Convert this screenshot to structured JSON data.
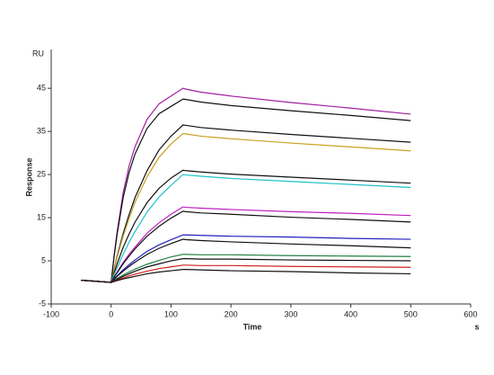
{
  "chart_data": {
    "type": "line",
    "y_unit": "RU",
    "ylabel": "Response",
    "xlabel": "Time",
    "x_unit": "s",
    "x": [
      -50,
      0,
      5,
      10,
      20,
      30,
      40,
      60,
      80,
      100,
      120,
      125,
      150,
      200,
      300,
      400,
      500
    ],
    "xlim": [
      -100,
      600
    ],
    "xticks": [
      -100,
      0,
      100,
      200,
      300,
      400,
      500,
      600
    ],
    "ylim": [
      -5,
      54
    ],
    "yticks": [
      -5,
      5,
      15,
      25,
      35,
      45
    ],
    "series": [
      {
        "color": "#a020a0",
        "values": [
          0.5,
          0,
          6.3,
          11.7,
          20.7,
          27,
          31.5,
          37.8,
          41.4,
          43.2,
          45,
          44.8,
          44.1,
          43.2,
          41.7,
          40.4,
          39
        ]
      },
      {
        "color": "#111111",
        "values": [
          0.5,
          0,
          6.0,
          11.1,
          19.6,
          25.5,
          29.8,
          35.7,
          39.1,
          40.8,
          42.5,
          42.4,
          41.8,
          41,
          39.8,
          38.7,
          37.5
        ]
      },
      {
        "color": "#111111",
        "values": [
          0.5,
          0,
          3.1,
          6.1,
          11.3,
          15.7,
          19.7,
          25.9,
          30.7,
          33.9,
          36.5,
          36.4,
          35.9,
          35.3,
          34.3,
          33.4,
          32.5
        ]
      },
      {
        "color": "#c8a020",
        "values": [
          0.5,
          0,
          3.0,
          5.8,
          10.7,
          14.8,
          18.6,
          24.5,
          29,
          32.1,
          34.5,
          34.4,
          33.9,
          33.3,
          32.3,
          31.4,
          30.5
        ]
      },
      {
        "color": "#111111",
        "values": [
          0.5,
          0,
          2.2,
          4.3,
          8.1,
          11.2,
          14,
          18.5,
          21.8,
          24.2,
          26,
          25.9,
          25.6,
          25.1,
          24.4,
          23.7,
          23
        ]
      },
      {
        "color": "#20c0c8",
        "values": [
          0.5,
          0,
          1.8,
          3.4,
          6.5,
          9.3,
          11.8,
          16.3,
          19.8,
          22.5,
          25,
          24.9,
          24.6,
          24.1,
          23.4,
          22.7,
          22
        ]
      },
      {
        "color": "#c020c0",
        "values": [
          0.5,
          0,
          1.2,
          2.4,
          4.6,
          6.5,
          8.2,
          11.4,
          13.8,
          15.8,
          17.5,
          17.4,
          17.2,
          16.9,
          16.4,
          16,
          15.5
        ]
      },
      {
        "color": "#111111",
        "values": [
          0.5,
          0,
          1.2,
          2.2,
          4.3,
          6.1,
          7.8,
          10.7,
          13,
          14.9,
          16.5,
          16.4,
          16.1,
          15.8,
          15.1,
          14.6,
          14
        ]
      },
      {
        "color": "#2020c0",
        "values": [
          0.5,
          0,
          0.8,
          1.5,
          2.9,
          4.1,
          5.2,
          7.2,
          8.7,
          9.9,
          11,
          11,
          10.9,
          10.7,
          10.5,
          10.2,
          10
        ]
      },
      {
        "color": "#111111",
        "values": [
          0.5,
          0,
          0.7,
          1.4,
          2.6,
          3.7,
          4.7,
          6.5,
          7.9,
          9,
          10,
          9.9,
          9.7,
          9.4,
          8.9,
          8.5,
          8
        ]
      },
      {
        "color": "#208040",
        "values": [
          0.5,
          0,
          0.5,
          0.9,
          1.7,
          2.4,
          3.1,
          4.2,
          5.1,
          5.9,
          6.5,
          6.5,
          6.4,
          6.4,
          6.2,
          6.1,
          6
        ]
      },
      {
        "color": "#111111",
        "values": [
          0.5,
          0,
          0.4,
          0.7,
          1.4,
          2,
          2.6,
          3.6,
          4.3,
          5,
          5.5,
          5.5,
          5.4,
          5.4,
          5.2,
          5.1,
          5
        ]
      },
      {
        "color": "#d02020",
        "values": [
          0.5,
          0,
          0.3,
          0.5,
          1,
          1.5,
          1.9,
          2.6,
          3.2,
          3.6,
          4,
          4,
          3.9,
          3.9,
          3.7,
          3.6,
          3.5
        ]
      },
      {
        "color": "#111111",
        "values": [
          0.5,
          0,
          0.2,
          0.4,
          0.8,
          1.1,
          1.4,
          2,
          2.4,
          2.7,
          3,
          3,
          2.9,
          2.7,
          2.5,
          2.2,
          2
        ]
      }
    ]
  }
}
